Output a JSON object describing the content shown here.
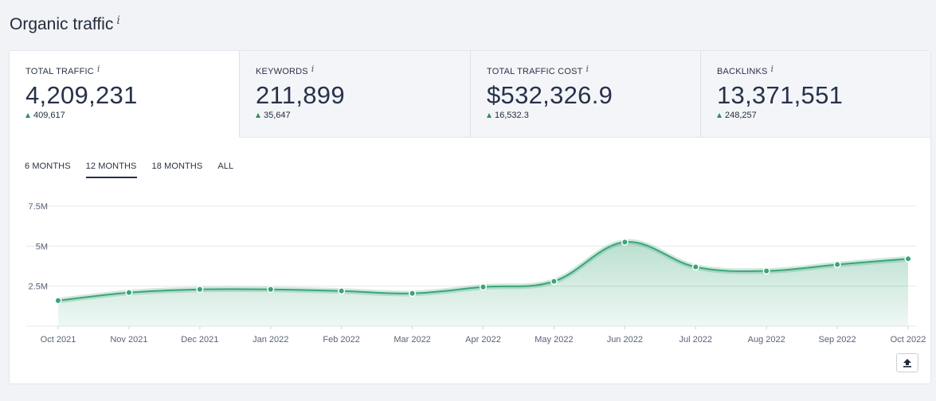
{
  "header": {
    "title": "Organic traffic",
    "info_icon": "i"
  },
  "metrics": [
    {
      "label": "TOTAL TRAFFIC",
      "value": "4,209,231",
      "delta": "409,617",
      "active": true
    },
    {
      "label": "KEYWORDS",
      "value": "211,899",
      "delta": "35,647",
      "active": false
    },
    {
      "label": "TOTAL TRAFFIC COST",
      "value": "$532,326.9",
      "delta": "16,532.3",
      "active": false
    },
    {
      "label": "BACKLINKS",
      "value": "13,371,551",
      "delta": "248,257",
      "active": false
    }
  ],
  "period_tabs": [
    {
      "label": "6 MONTHS",
      "active": false
    },
    {
      "label": "12 MONTHS",
      "active": true
    },
    {
      "label": "18 MONTHS",
      "active": false
    },
    {
      "label": "ALL",
      "active": false
    }
  ],
  "icons": {
    "info": "info-icon",
    "delta": "triangle-up-icon",
    "export": "upload-icon"
  },
  "colors": {
    "accent": "#3aa577",
    "delta_up": "#2f8f5b",
    "text": "#27324a"
  },
  "chart_data": {
    "type": "area",
    "title": "",
    "xlabel": "",
    "ylabel": "",
    "categories": [
      "Oct 2021",
      "Nov 2021",
      "Dec 2021",
      "Jan 2022",
      "Feb 2022",
      "Mar 2022",
      "Apr 2022",
      "May 2022",
      "Jun 2022",
      "Jul 2022",
      "Aug 2022",
      "Sep 2022",
      "Oct 2022"
    ],
    "series": [
      {
        "values": [
          1600000,
          2100000,
          2300000,
          2300000,
          2200000,
          2050000,
          2450000,
          2800000,
          5250000,
          3700000,
          3450000,
          3850000,
          4209231
        ]
      }
    ],
    "y_ticks": [
      {
        "value": 2500000,
        "label": "2.5M"
      },
      {
        "value": 5000000,
        "label": "5M"
      },
      {
        "value": 7500000,
        "label": "7.5M"
      }
    ],
    "ylim": [
      0,
      7500000
    ],
    "grid": true,
    "legend": "none"
  }
}
